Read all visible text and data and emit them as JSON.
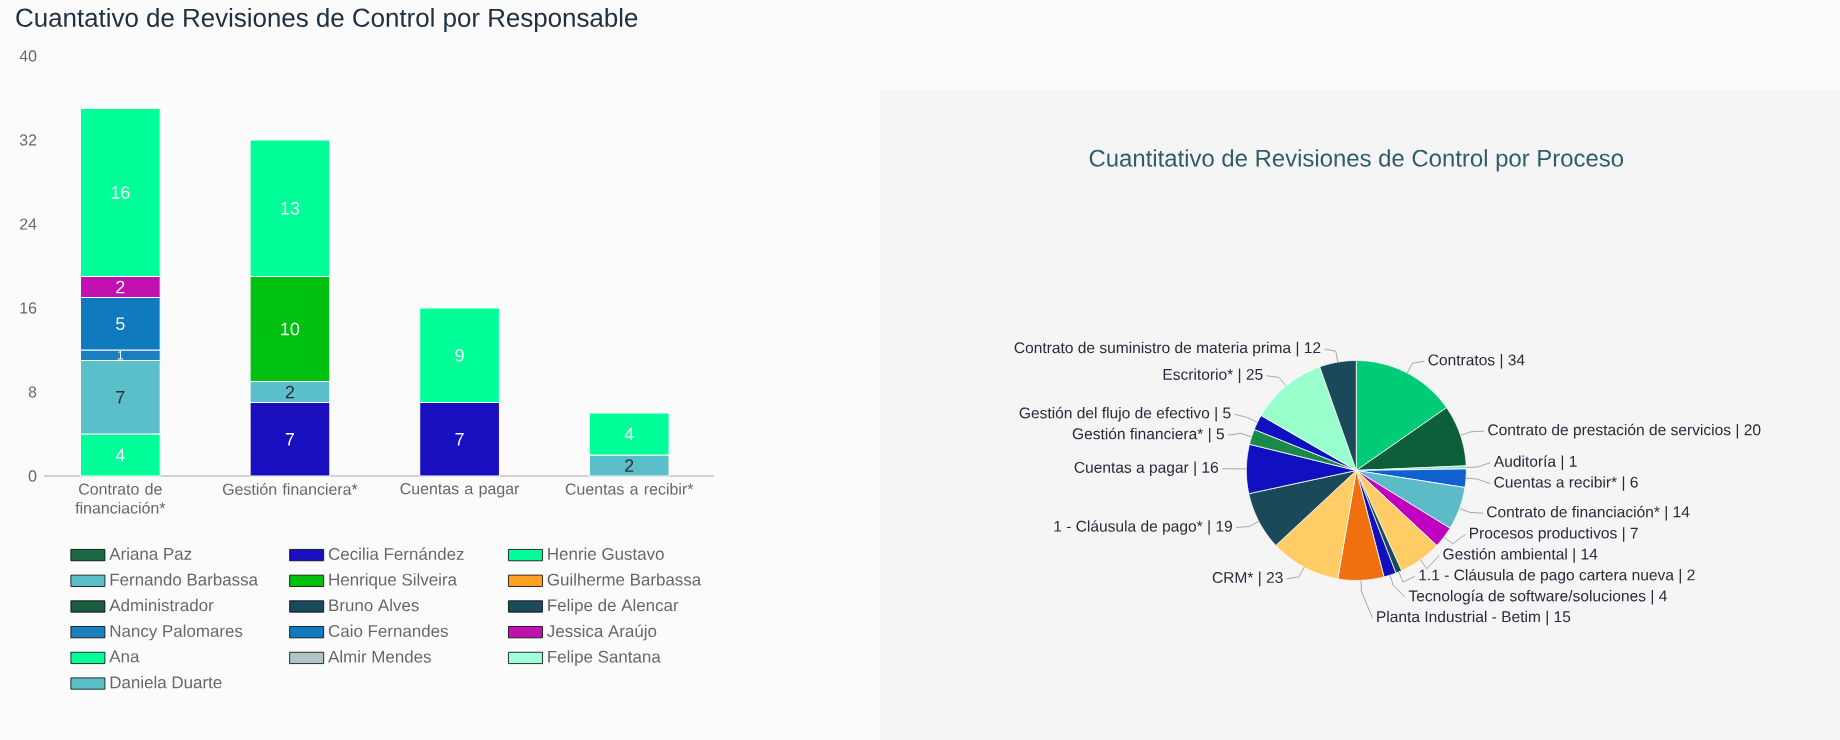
{
  "chart_data": [
    {
      "type": "bar",
      "title": "Cuantativo de Revisiones de Control por Responsable",
      "stacked": true,
      "data_labels": true,
      "legend": "bottom",
      "categories": [
        "Contrato de financiación*",
        "Gestión financiera*",
        "Cuentas a pagar",
        "Cuentas a recibir*"
      ],
      "ylim": [
        0,
        40
      ],
      "yticks": [
        0,
        8,
        16,
        24,
        32,
        40
      ],
      "series": [
        {
          "name": "Ariana Paz",
          "color": "#1a6b45",
          "values": [
            null,
            null,
            null,
            null
          ]
        },
        {
          "name": "Cecilia Fernández",
          "color": "#1a0fbf",
          "values": [
            null,
            7,
            7,
            null
          ]
        },
        {
          "name": "Henrie Gustavo",
          "color": "#00ff99",
          "values": [
            4,
            null,
            null,
            null
          ]
        },
        {
          "name": "Fernando Barbassa",
          "color": "#5bbfca",
          "values": [
            7,
            2,
            null,
            2
          ]
        },
        {
          "name": "Henrique Silveira",
          "color": "#00c010",
          "values": [
            null,
            10,
            null,
            null
          ]
        },
        {
          "name": "Guilherme Barbassa",
          "color": "#ffa020",
          "values": [
            null,
            null,
            null,
            null
          ]
        },
        {
          "name": "Administrador",
          "color": "#1b5e3f",
          "values": [
            null,
            null,
            null,
            null
          ]
        },
        {
          "name": "Bruno Alves",
          "color": "#1b4a5a",
          "values": [
            null,
            null,
            null,
            null
          ]
        },
        {
          "name": "Felipe de Alencar",
          "color": "#1b4a5a",
          "values": [
            null,
            null,
            null,
            null
          ]
        },
        {
          "name": "Nancy Palomares",
          "color": "#1a7fbf",
          "values": [
            1,
            null,
            null,
            null
          ]
        },
        {
          "name": "Caio Fernandes",
          "color": "#107abf",
          "values": [
            5,
            null,
            null,
            null
          ]
        },
        {
          "name": "Jessica Araújo",
          "color": "#c010b0",
          "values": [
            2,
            null,
            null,
            null
          ]
        },
        {
          "name": "Ana",
          "color": "#00ff99",
          "values": [
            16,
            13,
            9,
            4
          ]
        },
        {
          "name": "Almir Mendes",
          "color": "#b0c4c4",
          "values": [
            null,
            null,
            null,
            null
          ]
        },
        {
          "name": "Felipe Santana",
          "color": "#a0ffd8",
          "values": [
            null,
            null,
            null,
            null
          ]
        },
        {
          "name": "Daniela Duarte",
          "color": "#5bbfca",
          "values": [
            null,
            null,
            null,
            null
          ]
        }
      ]
    },
    {
      "type": "pie",
      "title": "Cuantitativo de Revisiones de Control por Proceso",
      "value_labels": [
        "| 34",
        "| 20",
        "| 1",
        "| 6",
        "| 14",
        "| 7",
        "| 14",
        "| 2",
        "| 4",
        "| 15",
        "| 23",
        "| 19",
        "| 16",
        "| 5",
        "| 5",
        "| 25",
        "| 12"
      ],
      "categories": [
        "Contratos",
        "Contrato de prestación de servicios",
        "Auditoría",
        "Cuentas a recibir*",
        "Contrato de financiación*",
        "Procesos productivos",
        "Gestión ambiental",
        "1.1 - Cláusula de pago cartera nueva",
        "Tecnología de software/soluciones",
        "Planta Industrial - Betim",
        "CRM*",
        "1 - Cláusula de pago*",
        "Cuentas a pagar",
        "Gestión financiera*",
        "Gestión del flujo de efectivo",
        "Escritorio*",
        "Contrato de suministro de materia prima"
      ],
      "values": [
        34,
        20,
        1,
        6,
        14,
        7,
        14,
        2,
        4,
        15,
        23,
        19,
        16,
        5,
        5,
        25,
        12
      ],
      "colors": [
        "#00cc77",
        "#0d5e3a",
        "#88e0c0",
        "#1060d0",
        "#5bbcc8",
        "#c000c0",
        "#ffcc66",
        "#1a4a5a",
        "#1010c0",
        "#f07010",
        "#ffcc66",
        "#1a4a5a",
        "#1010c0",
        "#1a8a4a",
        "#1010c0",
        "#99ffcc",
        "#1a4a5a"
      ]
    }
  ]
}
